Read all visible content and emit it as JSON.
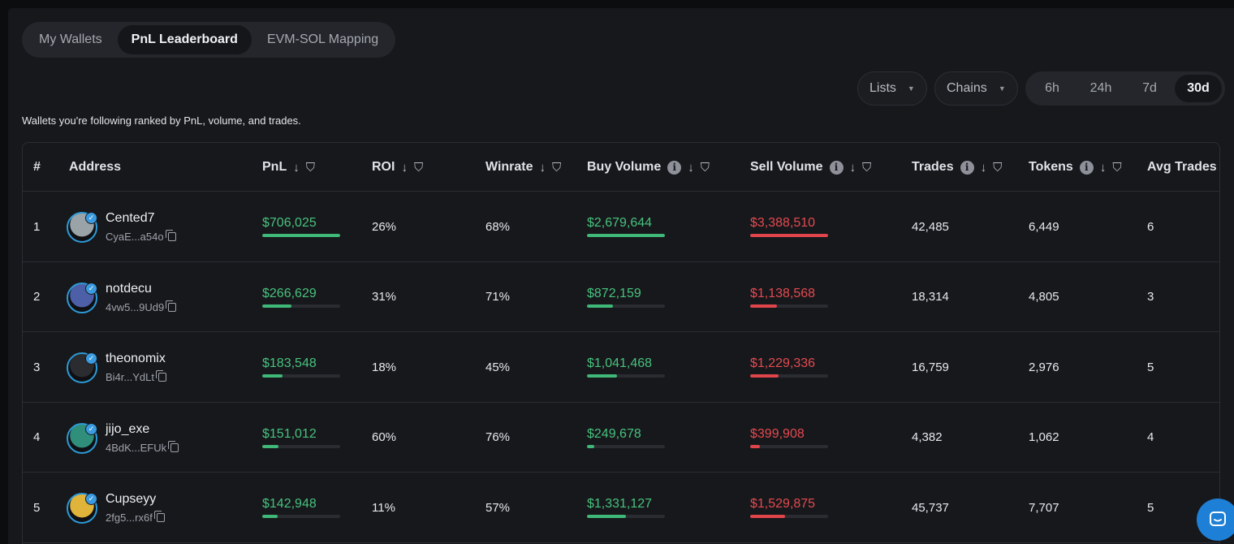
{
  "tabs": [
    {
      "label": "My Wallets",
      "active": false
    },
    {
      "label": "PnL Leaderboard",
      "active": true
    },
    {
      "label": "EVM-SOL Mapping",
      "active": false
    }
  ],
  "filters": {
    "lists_label": "Lists",
    "chains_label": "Chains"
  },
  "timeframes": [
    {
      "label": "6h",
      "active": false
    },
    {
      "label": "24h",
      "active": false
    },
    {
      "label": "7d",
      "active": false
    },
    {
      "label": "30d",
      "active": true
    }
  ],
  "subtitle": "Wallets you're following ranked by PnL, volume, and trades.",
  "columns": {
    "rank": "#",
    "address": "Address",
    "pnl": "PnL",
    "roi": "ROI",
    "winrate": "Winrate",
    "buy_volume": "Buy Volume",
    "sell_volume": "Sell Volume",
    "trades": "Trades",
    "tokens": "Tokens",
    "avg_trades": "Avg Trades"
  },
  "rows": [
    {
      "rank": "1",
      "name": "Cented7",
      "address": "CyaE...a54o",
      "pnl": "$706,025",
      "pnl_fill": 1.0,
      "roi": "26%",
      "winrate": "68%",
      "buy_volume": "$2,679,644",
      "buy_fill": 1.0,
      "sell_volume": "$3,388,510",
      "sell_fill": 1.0,
      "trades": "42,485",
      "tokens": "6,449",
      "avg_trades": "6",
      "avatar_color": "#9aa3a8"
    },
    {
      "rank": "2",
      "name": "notdecu",
      "address": "4vw5...9Ud9",
      "pnl": "$266,629",
      "pnl_fill": 0.38,
      "roi": "31%",
      "winrate": "71%",
      "buy_volume": "$872,159",
      "buy_fill": 0.33,
      "sell_volume": "$1,138,568",
      "sell_fill": 0.34,
      "trades": "18,314",
      "tokens": "4,805",
      "avg_trades": "3",
      "avatar_color": "#4d5fa6"
    },
    {
      "rank": "3",
      "name": "theonomix",
      "address": "Bi4r...YdLt",
      "pnl": "$183,548",
      "pnl_fill": 0.26,
      "roi": "18%",
      "winrate": "45%",
      "buy_volume": "$1,041,468",
      "buy_fill": 0.39,
      "sell_volume": "$1,229,336",
      "sell_fill": 0.36,
      "trades": "16,759",
      "tokens": "2,976",
      "avg_trades": "5",
      "avatar_color": "#2a2c30"
    },
    {
      "rank": "4",
      "name": "jijo_exe",
      "address": "4BdK...EFUk",
      "pnl": "$151,012",
      "pnl_fill": 0.21,
      "roi": "60%",
      "winrate": "76%",
      "buy_volume": "$249,678",
      "buy_fill": 0.09,
      "sell_volume": "$399,908",
      "sell_fill": 0.12,
      "trades": "4,382",
      "tokens": "1,062",
      "avg_trades": "4",
      "avatar_color": "#2f8f7a"
    },
    {
      "rank": "5",
      "name": "Cupseyy",
      "address": "2fg5...rx6f",
      "pnl": "$142,948",
      "pnl_fill": 0.2,
      "roi": "11%",
      "winrate": "57%",
      "buy_volume": "$1,331,127",
      "buy_fill": 0.5,
      "sell_volume": "$1,529,875",
      "sell_fill": 0.45,
      "trades": "45,737",
      "tokens": "7,707",
      "avg_trades": "5",
      "avatar_color": "#e0b43a"
    }
  ],
  "icons": {
    "sort": "sort-desc-icon",
    "filter": "filter-icon",
    "info": "info-icon",
    "copy": "copy-icon",
    "chat": "chat-icon"
  },
  "colors": {
    "positive": "#47c27d",
    "negative": "#e34a4f",
    "accent": "#1e7fd6"
  }
}
